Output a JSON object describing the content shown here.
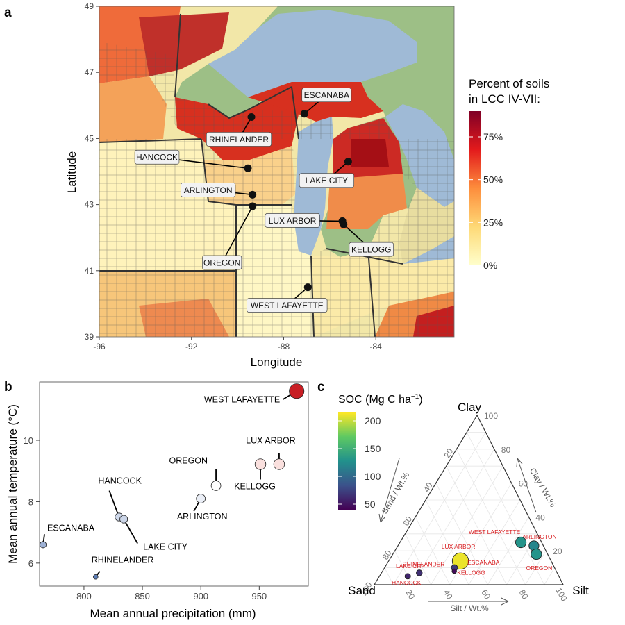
{
  "panel_labels": {
    "a": "a",
    "b": "b",
    "c": "c"
  },
  "colors": {
    "map_scale": [
      "#ffffcc",
      "#fed976",
      "#fd8d3c",
      "#e31a1c",
      "#800026"
    ],
    "water": "#9fbad6",
    "land": "#9dbf86",
    "soc_scale": [
      "#440154",
      "#3b528b",
      "#21918c",
      "#5ec962",
      "#fde725"
    ],
    "temp_scale": [
      "#5a7cb5",
      "#b8c6e0",
      "#ffffff",
      "#f4b8b4",
      "#c81e24"
    ],
    "label_text_red": "#d7191c"
  },
  "map": {
    "xlabel": "Longitude",
    "ylabel": "Latitude",
    "xlim": [
      -96,
      -80.6
    ],
    "ylim": [
      39,
      49
    ],
    "xticks": [
      -96,
      -92,
      -88,
      -84
    ],
    "yticks": [
      39,
      41,
      43,
      45,
      47,
      49
    ],
    "legend": {
      "title_line1": "Percent of soils",
      "title_line2": "in LCC IV-VII:",
      "range": [
        0,
        90
      ],
      "ticks": [
        {
          "v": 0,
          "label": "0%"
        },
        {
          "v": 25,
          "label": "25%"
        },
        {
          "v": 50,
          "label": "50%"
        },
        {
          "v": 75,
          "label": "75%"
        }
      ]
    }
  },
  "scatter": {
    "xlabel": "Mean annual precipitation (mm)",
    "ylabel": "Mean annual temperature (°C)",
    "xlim": [
      762,
      992
    ],
    "ylim": [
      5.25,
      11.9
    ],
    "xticks": [
      800,
      850,
      900,
      950
    ],
    "yticks": [
      6,
      8,
      10
    ]
  },
  "ternary": {
    "legend_title": "SOC (Mg C ha",
    "legend_sup": "−1",
    "legend_close": ")",
    "legend_range": [
      40,
      215
    ],
    "legend_ticks": [
      50,
      100,
      150,
      200
    ],
    "vertex_clay": "Clay",
    "vertex_sand": "Sand",
    "vertex_silt": "Silt",
    "axis_sand": "Sand / Wt.%",
    "axis_clay": "Clay / Wt.%",
    "axis_silt": "Silt / Wt.%",
    "ticks": [
      "20",
      "40",
      "60",
      "80",
      "100"
    ]
  },
  "chart_data": [
    {
      "type": "scatter",
      "panel": "a",
      "description_of_values": "site locations (longitude, latitude)",
      "points": [
        {
          "label": "ESCANABA",
          "x": -87.1,
          "y": 45.75
        },
        {
          "label": "RHINELANDER",
          "x": -89.4,
          "y": 45.65
        },
        {
          "label": "HANCOCK",
          "x": -89.55,
          "y": 44.1
        },
        {
          "label": "LAKE CITY",
          "x": -85.2,
          "y": 44.3
        },
        {
          "label": "ARLINGTON",
          "x": -89.35,
          "y": 43.3
        },
        {
          "label": "OREGON",
          "x": -89.35,
          "y": 42.95
        },
        {
          "label": "LUX ARBOR",
          "x": -85.45,
          "y": 42.5
        },
        {
          "label": "KELLOGG",
          "x": -85.4,
          "y": 42.4
        },
        {
          "label": "WEST LAFAYETTE",
          "x": -86.95,
          "y": 40.5
        }
      ]
    },
    {
      "type": "scatter",
      "panel": "b",
      "points": [
        {
          "label": "ESCANABA",
          "x": 765,
          "y": 6.6
        },
        {
          "label": "RHINELANDER",
          "x": 810,
          "y": 5.55
        },
        {
          "label": "HANCOCK",
          "x": 830,
          "y": 7.5
        },
        {
          "label": "LAKE CITY",
          "x": 834,
          "y": 7.43
        },
        {
          "label": "ARLINGTON",
          "x": 900,
          "y": 8.1
        },
        {
          "label": "OREGON",
          "x": 913,
          "y": 8.52
        },
        {
          "label": "LUX ARBOR",
          "x": 967,
          "y": 9.22
        },
        {
          "label": "KELLOGG",
          "x": 951,
          "y": 9.22
        },
        {
          "label": "WEST LAFAYETTE",
          "x": 982,
          "y": 11.6
        }
      ]
    },
    {
      "type": "ternary",
      "panel": "c",
      "points": [
        {
          "label": "ARLINGTON",
          "clay": 23,
          "silt": 72,
          "sand": 5,
          "soc": 120
        },
        {
          "label": "WEST LAFAYETTE",
          "clay": 25,
          "silt": 64,
          "sand": 11,
          "soc": 130
        },
        {
          "label": "OREGON",
          "clay": 18,
          "silt": 76,
          "sand": 6,
          "soc": 130
        },
        {
          "label": "LUX ARBOR",
          "clay": 16,
          "silt": 38,
          "sand": 46,
          "soc": 60
        },
        {
          "label": "ESCANABA",
          "clay": 14,
          "silt": 38,
          "sand": 48,
          "soc": 210
        },
        {
          "label": "RHINELANDER",
          "clay": 10,
          "silt": 37,
          "sand": 53,
          "soc": 70
        },
        {
          "label": "KELLOGG",
          "clay": 8,
          "silt": 38,
          "sand": 54,
          "soc": 45
        },
        {
          "label": "LAKE CITY",
          "clay": 7,
          "silt": 20,
          "sand": 73,
          "soc": 65
        },
        {
          "label": "HANCOCK",
          "clay": 5,
          "silt": 15,
          "sand": 80,
          "soc": 60
        }
      ]
    }
  ]
}
